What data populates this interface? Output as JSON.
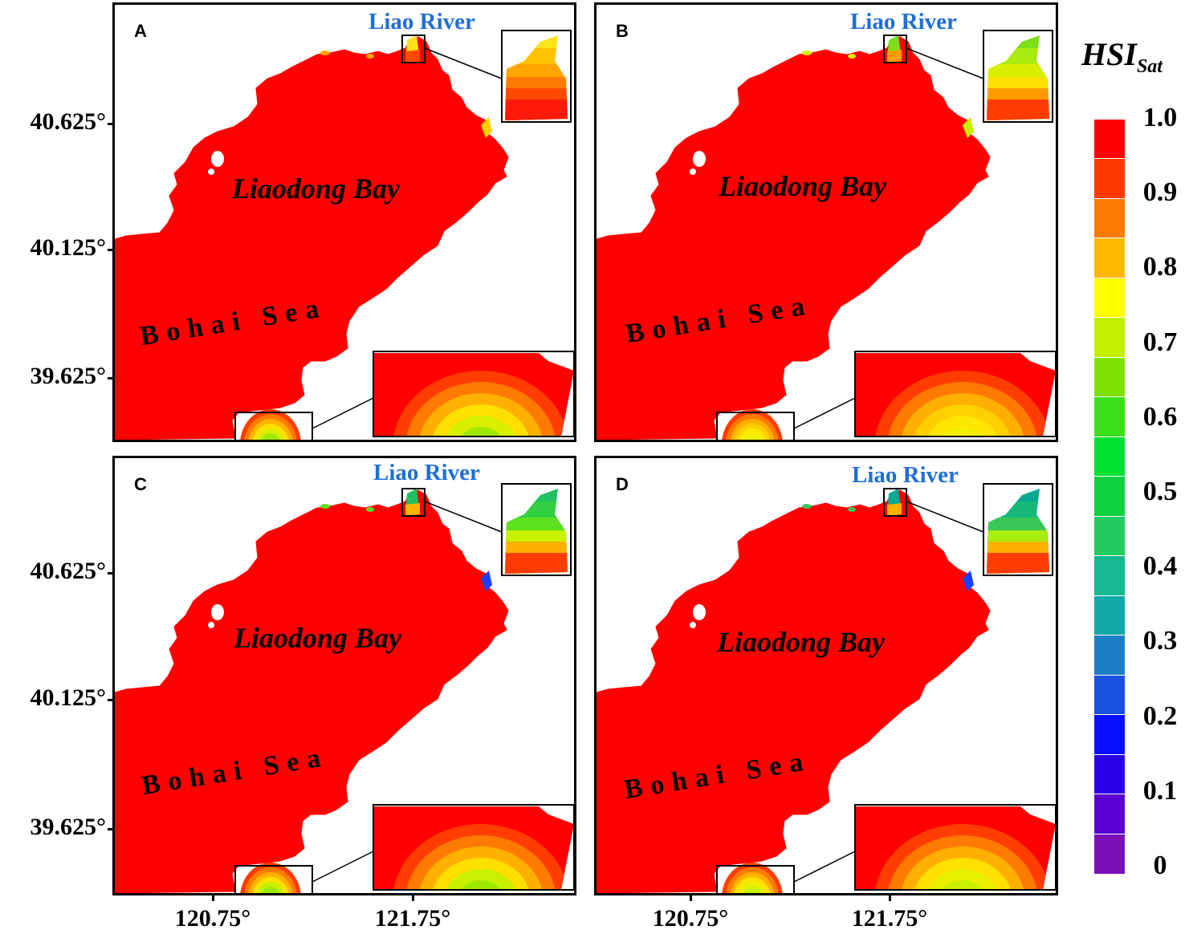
{
  "panels": [
    {
      "label": "A",
      "river_label": "Liao River",
      "bay_label": "Liaodong Bay",
      "sea_label": "Bohai Sea",
      "north_inset_colors": [
        "#ffe21a",
        "#ffc300",
        "#ffa500",
        "#ff7a00",
        "#ff4a00",
        "#ff1a0a"
      ],
      "south_inset_colors": [
        "#ff3d00",
        "#ff7a00",
        "#ffb000",
        "#ffe000",
        "#d8f000",
        "#9ee800"
      ],
      "east_spot": "#ffd200"
    },
    {
      "label": "B",
      "river_label": "Liao River",
      "bay_label": "Liaodong Bay",
      "sea_label": "Bohai Sea",
      "north_inset_colors": [
        "#7be01a",
        "#a8ec10",
        "#d8f000",
        "#ffe000",
        "#ff9a00",
        "#ff3d00"
      ],
      "south_inset_colors": [
        "#ff3d00",
        "#ff7a00",
        "#ffb000",
        "#ffd000",
        "#ffe600",
        "#f2f000"
      ],
      "east_spot": "#c8f000"
    },
    {
      "label": "C",
      "river_label": "Liao River",
      "bay_label": "Liaodong Bay",
      "sea_label": "Bohai Sea",
      "north_inset_colors": [
        "#22c060",
        "#32d040",
        "#5ee020",
        "#c8f000",
        "#ffb000",
        "#ff3d00"
      ],
      "south_inset_colors": [
        "#ff3d00",
        "#ff7a00",
        "#ffb000",
        "#ffe000",
        "#c8f000",
        "#9ee800"
      ],
      "east_spot": "#1a40ff"
    },
    {
      "label": "D",
      "river_label": "Liao River",
      "bay_label": "Liaodong Bay",
      "sea_label": "Bohai Sea",
      "north_inset_colors": [
        "#0aa890",
        "#18b878",
        "#38c858",
        "#a8ec10",
        "#ffb000",
        "#ff3d00"
      ],
      "south_inset_colors": [
        "#ff3d00",
        "#ff7a00",
        "#ffb000",
        "#ffe000",
        "#e8f000",
        "#c8f000"
      ],
      "east_spot": "#1a40ff"
    }
  ],
  "axes": {
    "y_ticks": [
      "40.625°",
      "40.125°",
      "39.625°"
    ],
    "x_ticks": [
      "120.75°",
      "121.75°"
    ]
  },
  "colorbar": {
    "title": "HSI",
    "title_sub": "Sat",
    "tick_labels": [
      "1.0",
      "0.9",
      "0.8",
      "0.7",
      "0.6",
      "0.5",
      "0.4",
      "0.3",
      "0.2",
      "0.1",
      "0"
    ],
    "colors": [
      "#ff0000",
      "#ff3a00",
      "#ff7a00",
      "#ffb800",
      "#ffff00",
      "#c4ef00",
      "#7de300",
      "#3ce01a",
      "#00e030",
      "#10d040",
      "#22cc60",
      "#18b890",
      "#10a8a8",
      "#1b7fc8",
      "#1a50e0",
      "#0a10ff",
      "#2a00e8",
      "#5a00d0",
      "#7a10b8"
    ]
  },
  "map_colors": {
    "water": "#ff0000",
    "land": "#ffffff",
    "frame": "#000000"
  }
}
